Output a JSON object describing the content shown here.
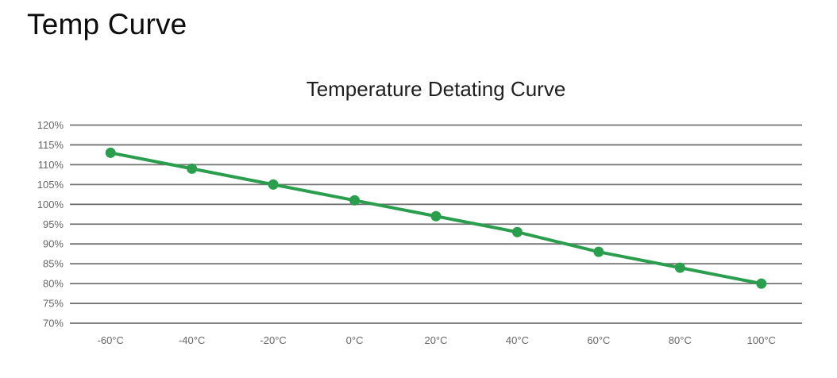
{
  "page": {
    "title": "Temp Curve"
  },
  "colors": {
    "background": "#ffffff",
    "heading_text": "#0d0d0d",
    "chart_title_text": "#1f1f1f",
    "gridline": "#737373",
    "axis_label": "#666666",
    "series_green": "#2b9e4e"
  },
  "chart_data": {
    "type": "line",
    "title": "Temperature Detating Curve",
    "categories": [
      "-60°C",
      "-40°C",
      "-20°C",
      "0°C",
      "20°C",
      "40°C",
      "60°C",
      "80°C",
      "100°C"
    ],
    "values": [
      113,
      109,
      105,
      101,
      97,
      93,
      88,
      84,
      80
    ],
    "xlabel": "",
    "ylabel": "",
    "ylim": [
      70,
      120
    ],
    "ytick_values": [
      70,
      75,
      80,
      85,
      90,
      95,
      100,
      105,
      110,
      115,
      120
    ],
    "ytick_labels": [
      "70%",
      "75%",
      "80%",
      "85%",
      "90%",
      "95%",
      "100%",
      "105%",
      "110%",
      "115%",
      "120%"
    ],
    "grid": true,
    "legend_position": "none",
    "marker": "circle",
    "line_width": 4,
    "marker_radius": 6.5
  }
}
